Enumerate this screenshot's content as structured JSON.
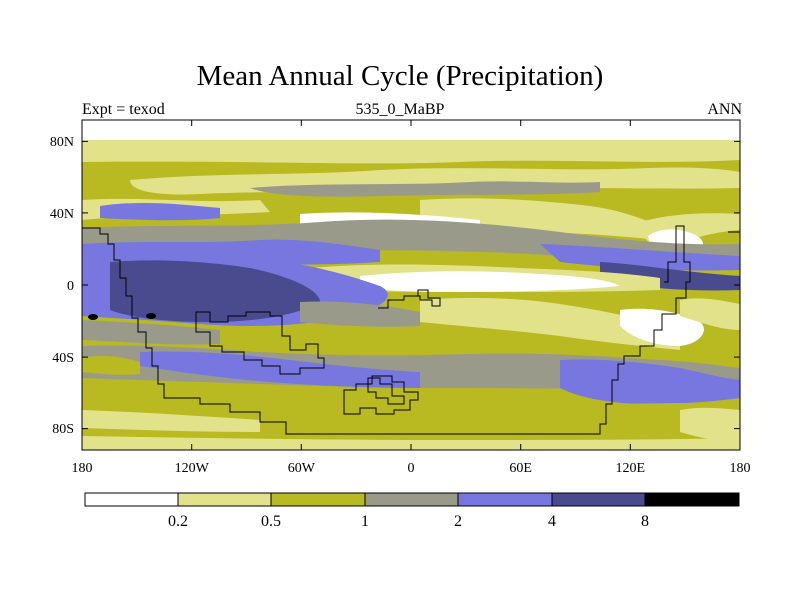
{
  "title": "Mean Annual Cycle (Precipitation)",
  "experiment_label": "Expt = texod",
  "period_label": "535_0_MaBP",
  "season_label": "ANN",
  "map": {
    "projection": "cylindrical equidistant",
    "lon_range": [
      -180,
      180
    ],
    "lat_range": [
      -90,
      90
    ],
    "x_ticks": [
      "180",
      "120W",
      "60W",
      "0",
      "60E",
      "120E",
      "180"
    ],
    "y_ticks": [
      "80N",
      "40N",
      "0",
      "40S",
      "80S"
    ]
  },
  "colorbar": {
    "levels": [
      "0.2",
      "0.5",
      "1",
      "2",
      "4",
      "8"
    ],
    "colors": [
      "#ffffff",
      "#e2e28a",
      "#b9b922",
      "#9a9a8a",
      "#7777df",
      "#4a4a8f",
      "#000000"
    ]
  }
}
